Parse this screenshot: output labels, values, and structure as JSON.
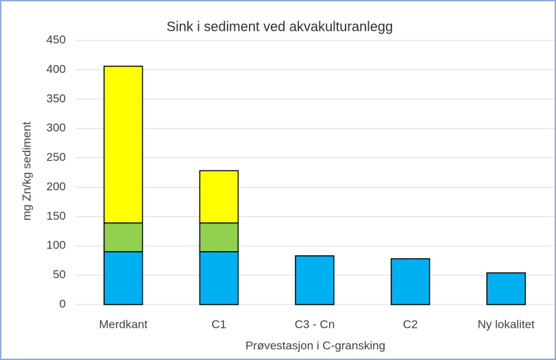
{
  "chart_data": {
    "type": "bar",
    "stacked": true,
    "title": "Sink i sediment ved akvakulturanlegg",
    "x_label": "Prøvestasjon i C-gransking",
    "y_label": "mg Zn/kg sediment",
    "categories": [
      "Merdkant",
      "C1",
      "C3 - Cn",
      "C2",
      "Ny lokalitet"
    ],
    "series": [
      {
        "color": "#00b0f0",
        "values": [
          90,
          90,
          83,
          78,
          54
        ]
      },
      {
        "color": "#92d050",
        "values": [
          49,
          49,
          null,
          null,
          null
        ]
      },
      {
        "color": "#ffff00",
        "values": [
          267,
          89,
          null,
          null,
          null
        ]
      }
    ],
    "ylim": [
      0,
      450
    ],
    "yticks": [
      0,
      50,
      100,
      150,
      200,
      250,
      300,
      350,
      400,
      450
    ],
    "grid": true
  }
}
